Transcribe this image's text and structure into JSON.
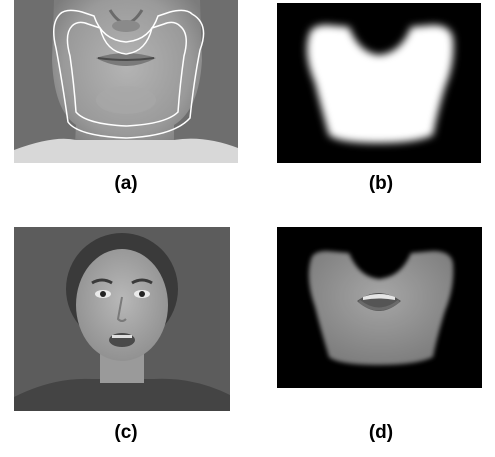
{
  "figure": {
    "panels": [
      {
        "id": "a",
        "caption": "(a)",
        "image": "face-lower-region-with-mask-outline"
      },
      {
        "id": "b",
        "caption": "(b)",
        "image": "binary-mask"
      },
      {
        "id": "c",
        "caption": "(c)",
        "image": "woman-talking-face"
      },
      {
        "id": "d",
        "caption": "(d)",
        "image": "masked-mouth-region"
      }
    ]
  }
}
